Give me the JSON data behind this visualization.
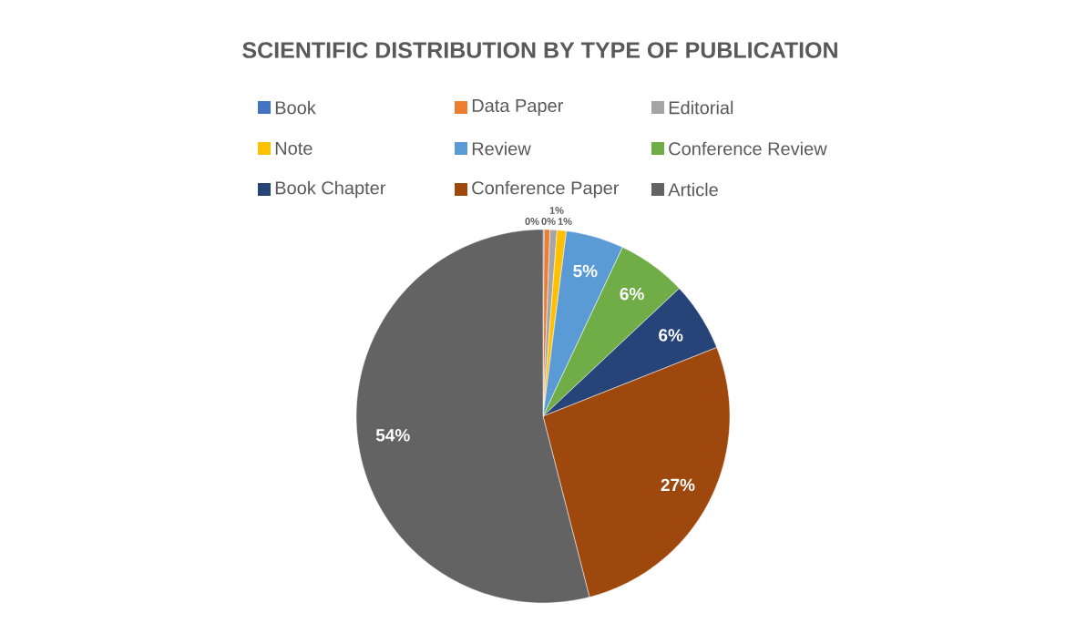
{
  "chart_data": {
    "type": "pie",
    "title": "SCIENTIFIC DISTRIBUTION BY TYPE OF PUBLICATION",
    "categories": [
      "Book",
      "Data Paper",
      "Editorial",
      "Note",
      "Review",
      "Conference Review",
      "Book Chapter",
      "Conference Paper",
      "Article"
    ],
    "values": [
      0.1,
      0.5,
      0.6,
      0.8,
      5,
      6,
      6,
      27,
      54
    ],
    "colors": [
      "#4472c4",
      "#ed7d31",
      "#a5a5a5",
      "#ffc000",
      "#5b9bd5",
      "#70ad47",
      "#264478",
      "#9e480e",
      "#636363"
    ],
    "value_labels": [
      "0%",
      "0%",
      "1%",
      "1%",
      "5%",
      "6%",
      "6%",
      "27%",
      "54%"
    ],
    "legend": "top"
  }
}
